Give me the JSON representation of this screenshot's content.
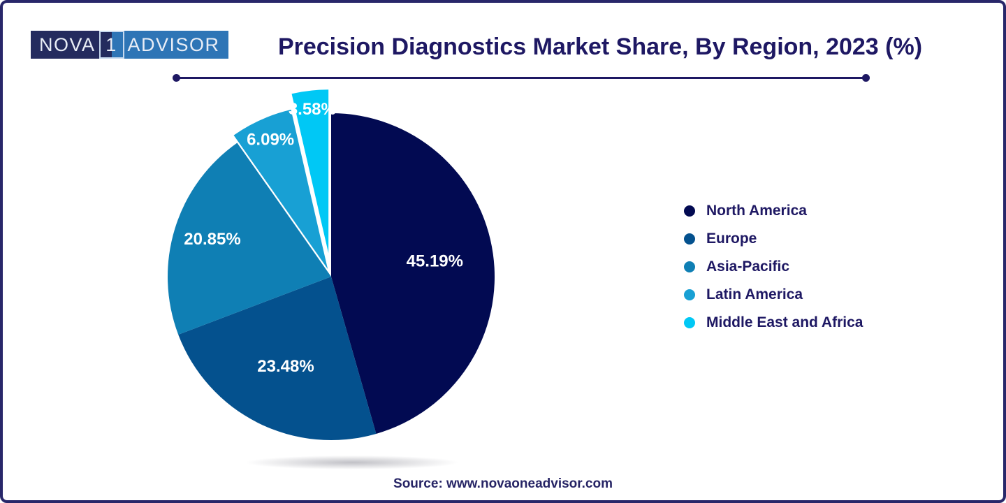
{
  "logo": {
    "left": "NOVA",
    "one": "1",
    "right": "ADVISOR"
  },
  "title": "Precision Diagnostics Market Share, By Region, 2023 (%)",
  "source": "Source: www.novaoneadvisor.com",
  "colors": {
    "accent_navy_text": "#1e1863",
    "canvas_border": "#28276a",
    "logo_navy": "#242b5e",
    "logo_blue": "#2e75b6"
  },
  "chart_data": {
    "type": "pie",
    "title": "Precision Diagnostics Market Share, By Region, 2023 (%)",
    "unit": "%",
    "legend_position": "right",
    "start_angle_deg": 0,
    "direction": "clockwise",
    "value_label_suffix": "%",
    "slices": [
      {
        "label": "North America",
        "value": 45.19,
        "color": "#020a52",
        "explode": 0,
        "label_r": 0.64
      },
      {
        "label": "Europe",
        "value": 23.48,
        "color": "#04518e",
        "explode": 0,
        "label_r": 0.62
      },
      {
        "label": "Asia-Pacific",
        "value": 20.85,
        "color": "#0f7fb4",
        "explode": 0,
        "label_r": 0.76
      },
      {
        "label": "Latin America",
        "value": 6.09,
        "color": "#18a0d4",
        "explode": 12,
        "label_r": 0.86
      },
      {
        "label": "Middle East and Africa",
        "value": 3.58,
        "color": "#00c8f5",
        "explode": 34,
        "label_r": 0.88
      }
    ]
  }
}
